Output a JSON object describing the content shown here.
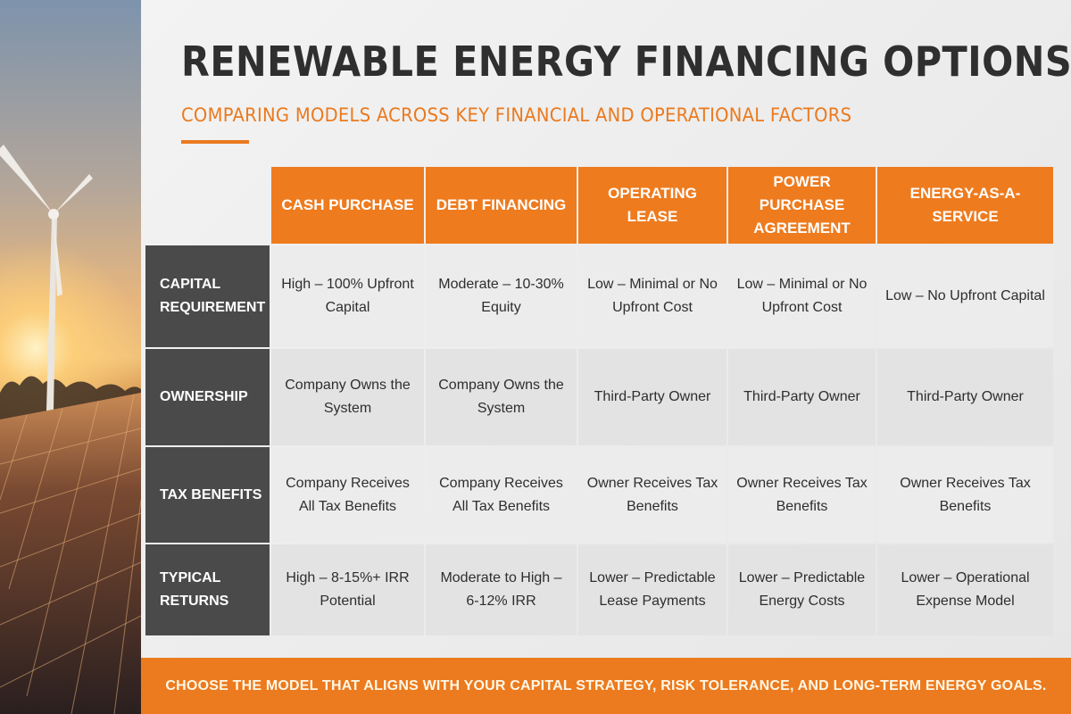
{
  "title": "RENEWABLE ENERGY FINANCING OPTIONS",
  "subtitle": "COMPARING MODELS ACROSS KEY FINANCIAL AND OPERATIONAL FACTORS",
  "colors": {
    "accent": "#ee7b1e",
    "row_header": "#4a4a4a",
    "title": "#2f2f2f"
  },
  "table": {
    "columns": [
      "CASH PURCHASE",
      "DEBT FINANCING",
      "OPERATING LEASE",
      "POWER PURCHASE AGREEMENT",
      "ENERGY-AS-A-SERVICE"
    ],
    "rows": [
      {
        "label": "CAPITAL REQUIREMENT",
        "cells": [
          "High – 100% Upfront Capital",
          "Moderate – 10-30% Equity",
          "Low – Minimal or No Upfront Cost",
          "Low – Minimal or No Upfront Cost",
          "Low – No Upfront Capital"
        ]
      },
      {
        "label": "OWNERSHIP",
        "cells": [
          "Company Owns the System",
          "Company Owns the System",
          "Third-Party Owner",
          "Third-Party Owner",
          "Third-Party Owner"
        ]
      },
      {
        "label": "TAX BENEFITS",
        "cells": [
          "Company Receives All Tax Benefits",
          "Company Receives All Tax Benefits",
          "Owner Receives Tax Benefits",
          "Owner Receives Tax Benefits",
          "Owner Receives Tax Benefits"
        ]
      },
      {
        "label": "TYPICAL RETURNS",
        "cells": [
          "High – 8-15%+ IRR Potential",
          "Moderate to High – 6-12% IRR",
          "Lower – Predictable Lease Payments",
          "Lower – Predictable Energy Costs",
          "Lower – Operational Expense Model"
        ]
      }
    ]
  },
  "footer": "CHOOSE THE MODEL THAT ALIGNS WITH YOUR CAPITAL STRATEGY, RISK TOLERANCE, AND LONG-TERM ENERGY GOALS."
}
